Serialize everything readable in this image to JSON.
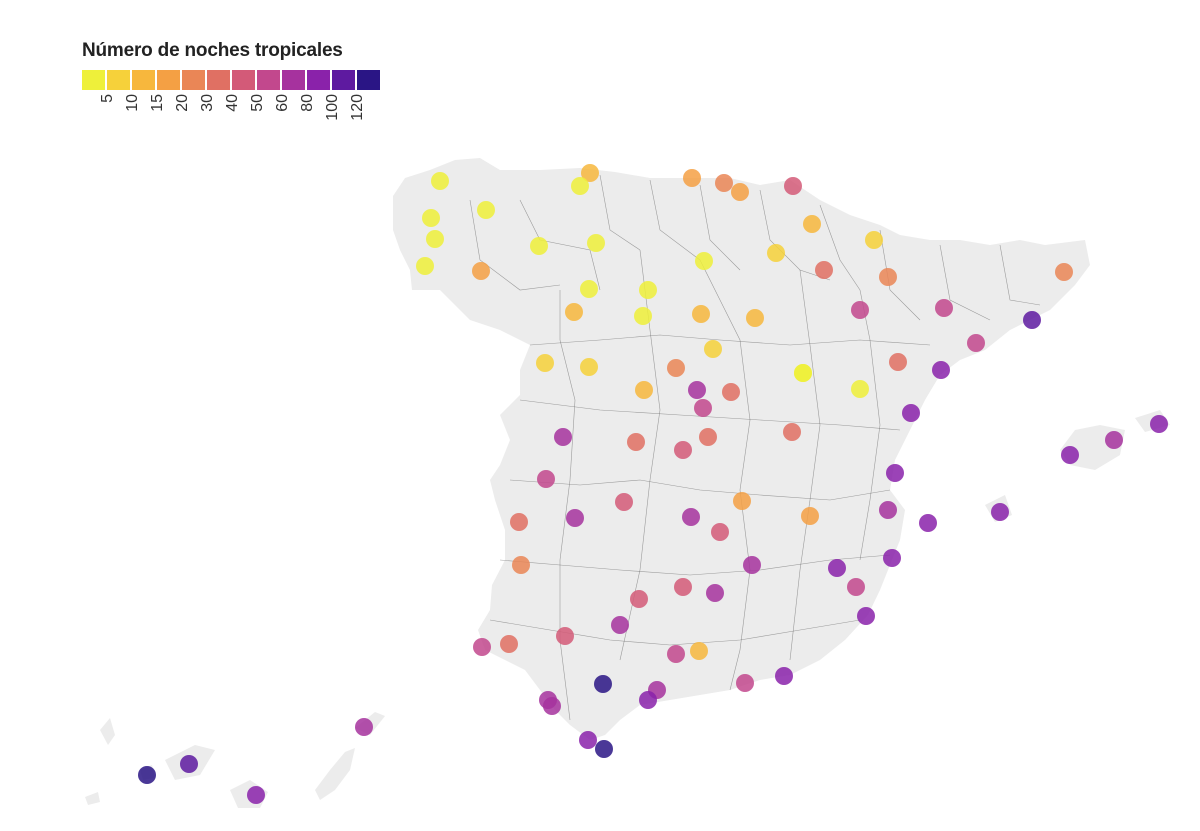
{
  "legend": {
    "title": "Número de noches tropicales",
    "labels": [
      "5",
      "10",
      "15",
      "20",
      "30",
      "40",
      "50",
      "60",
      "80",
      "100",
      "120"
    ],
    "colors": [
      "#eef03a",
      "#f6d13a",
      "#f7b73d",
      "#f4a044",
      "#ea8656",
      "#e07063",
      "#d35a78",
      "#c2488d",
      "#a6329e",
      "#8a22aa",
      "#5e1aa0",
      "#2a1585"
    ]
  },
  "map": {
    "land_color": "#ececec",
    "border_color": "#666666",
    "point_opacity": 0.85
  },
  "stations": [
    {
      "v": 2
    },
    {
      "v": 14
    },
    {
      "v": 2
    },
    {
      "v": 16
    },
    {
      "v": 20
    },
    {
      "v": 16
    },
    {
      "v": 45
    },
    {
      "v": 2
    },
    {
      "v": 2
    },
    {
      "v": 2
    },
    {
      "v": 2
    },
    {
      "v": 2
    },
    {
      "v": 2
    },
    {
      "v": 18
    },
    {
      "v": 3
    },
    {
      "v": 2
    },
    {
      "v": 2
    },
    {
      "v": 6
    },
    {
      "v": 10
    },
    {
      "v": 38
    },
    {
      "v": 22
    },
    {
      "v": 24
    },
    {
      "v": 10
    },
    {
      "v": 2
    },
    {
      "v": 12
    },
    {
      "v": 12
    },
    {
      "v": 5
    },
    {
      "v": 2
    },
    {
      "v": 50
    },
    {
      "v": 50
    },
    {
      "v": 100
    },
    {
      "v": 8
    },
    {
      "v": 50
    },
    {
      "v": 8
    },
    {
      "v": 8
    },
    {
      "v": 25
    },
    {
      "v": 2
    },
    {
      "v": 2
    },
    {
      "v": 30
    },
    {
      "v": 90
    },
    {
      "v": 12
    },
    {
      "v": 60
    },
    {
      "v": 35
    },
    {
      "v": 55
    },
    {
      "v": 80
    },
    {
      "v": 35
    },
    {
      "v": 30
    },
    {
      "v": 60
    },
    {
      "v": 30
    },
    {
      "v": 95
    },
    {
      "v": 95
    },
    {
      "v": 70
    },
    {
      "v": 85
    },
    {
      "v": 50
    },
    {
      "v": 40
    },
    {
      "v": 65
    },
    {
      "v": 18
    },
    {
      "v": 60
    },
    {
      "v": 40
    },
    {
      "v": 18
    },
    {
      "v": 80
    },
    {
      "v": 60
    },
    {
      "v": 85
    },
    {
      "v": 30
    },
    {
      "v": 22
    },
    {
      "v": 75
    },
    {
      "v": 45
    },
    {
      "v": 40
    },
    {
      "v": 70
    },
    {
      "v": 90
    },
    {
      "v": 55
    },
    {
      "v": 85
    },
    {
      "v": 95
    },
    {
      "v": 40
    },
    {
      "v": 40
    },
    {
      "v": 60
    },
    {
      "v": 55
    },
    {
      "v": 55
    },
    {
      "v": 12
    },
    {
      "v": 30
    },
    {
      "v": 120
    },
    {
      "v": 65
    },
    {
      "v": 70
    },
    {
      "v": 75
    },
    {
      "v": 80
    },
    {
      "v": 50
    },
    {
      "v": 80
    },
    {
      "v": 80
    },
    {
      "v": 120
    },
    {
      "v": 70
    },
    {
      "v": 120
    },
    {
      "v": 100
    },
    {
      "v": 80
    }
  ]
}
